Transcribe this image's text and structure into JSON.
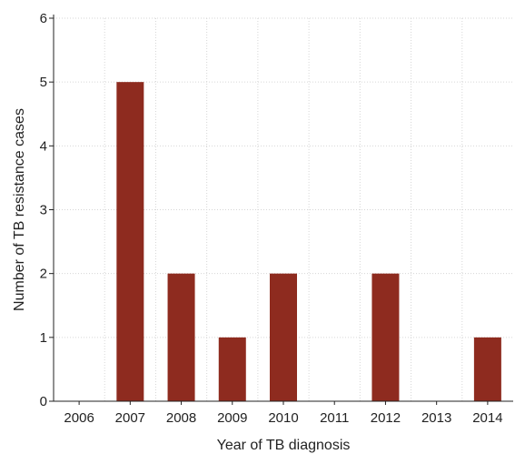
{
  "chart_data": {
    "type": "bar",
    "categories": [
      "2006",
      "2007",
      "2008",
      "2009",
      "2010",
      "2011",
      "2012",
      "2013",
      "2014"
    ],
    "values": [
      0,
      5,
      2,
      1,
      2,
      0,
      2,
      0,
      1
    ],
    "xlabel": "Year of TB diagnosis",
    "ylabel": "Number of TB resistance cases",
    "ylim": [
      0,
      6
    ],
    "yticks": [
      0,
      1,
      2,
      3,
      4,
      5,
      6
    ],
    "grid": true,
    "bar_color": "#8e2b1f"
  }
}
